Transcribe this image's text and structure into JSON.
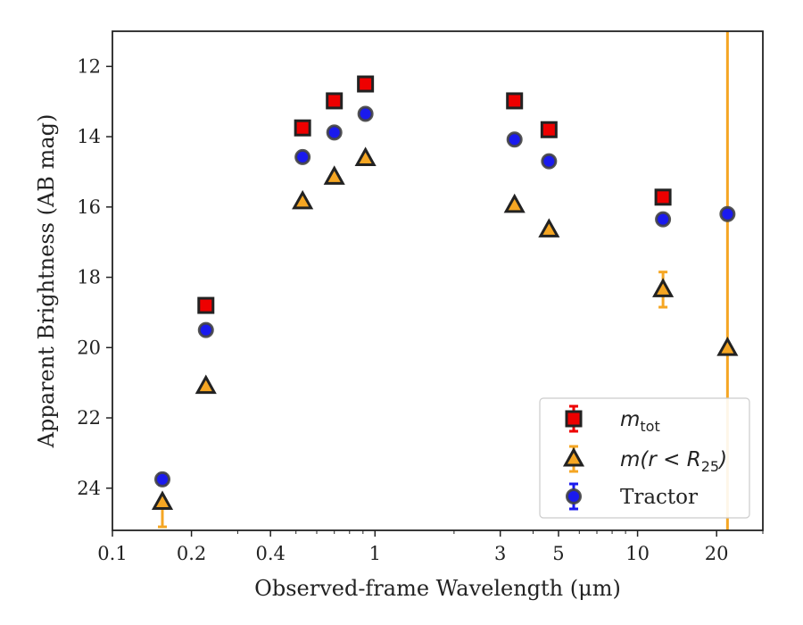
{
  "chart_data": {
    "type": "scatter",
    "xlabel": "Observed-frame Wavelength (μm)",
    "ylabel": "Apparent Brightness (AB mag)",
    "x_scale": "log",
    "xlim": [
      0.1,
      30
    ],
    "ylim": [
      25.2,
      11.0
    ],
    "y_inverted": true,
    "x_ticks": [
      0.1,
      0.2,
      0.4,
      1,
      3,
      5,
      10,
      20
    ],
    "x_tick_labels": [
      "0.1",
      "0.2",
      "0.4",
      "1",
      "3",
      "5",
      "10",
      "20"
    ],
    "y_ticks": [
      12,
      14,
      16,
      18,
      20,
      22,
      24
    ],
    "y_tick_labels": [
      "12",
      "14",
      "16",
      "18",
      "20",
      "22",
      "24"
    ],
    "grid": false,
    "legend_position": "lower right",
    "series": [
      {
        "name": "m_tot",
        "legend_main": "m",
        "legend_sub": "tot",
        "marker": "square",
        "color": "#ee0000",
        "errorbar_color": "#ee0000",
        "edge_color": "#222222",
        "points": [
          {
            "x": 0.227,
            "y": 18.8
          },
          {
            "x": 0.53,
            "y": 13.75
          },
          {
            "x": 0.7,
            "y": 12.98
          },
          {
            "x": 0.92,
            "y": 12.5
          },
          {
            "x": 3.4,
            "y": 12.98
          },
          {
            "x": 4.6,
            "y": 13.8
          },
          {
            "x": 12.5,
            "y": 15.72
          }
        ]
      },
      {
        "name": "m(r < R_25)",
        "legend_main": "m(r < R",
        "legend_sub": "25",
        "legend_close": ")",
        "marker": "triangle",
        "color": "#f5a623",
        "errorbar_color": "#f5a623",
        "edge_color": "#222222",
        "points": [
          {
            "x": 0.155,
            "y": 24.4,
            "err_low": 0.7,
            "err_high": 0.0
          },
          {
            "x": 0.227,
            "y": 21.1
          },
          {
            "x": 0.53,
            "y": 15.85
          },
          {
            "x": 0.7,
            "y": 15.15
          },
          {
            "x": 0.92,
            "y": 14.62
          },
          {
            "x": 3.4,
            "y": 15.95
          },
          {
            "x": 4.6,
            "y": 16.65
          },
          {
            "x": 12.5,
            "y": 18.35,
            "err_low": 0.5,
            "err_high": 0.5
          },
          {
            "x": 22.0,
            "y": 20.02,
            "err_low": 50,
            "err_high": 50
          }
        ]
      },
      {
        "name": "Tractor",
        "marker": "circle",
        "color": "#1a1aee",
        "errorbar_color": "#1a1aee",
        "edge_color": "#444444",
        "points": [
          {
            "x": 0.155,
            "y": 23.75,
            "err_low": 0.15,
            "err_high": 0.15
          },
          {
            "x": 0.227,
            "y": 19.5
          },
          {
            "x": 0.53,
            "y": 14.58
          },
          {
            "x": 0.7,
            "y": 13.88
          },
          {
            "x": 0.92,
            "y": 13.35
          },
          {
            "x": 3.4,
            "y": 14.08
          },
          {
            "x": 4.6,
            "y": 14.7
          },
          {
            "x": 12.5,
            "y": 16.35
          },
          {
            "x": 22.0,
            "y": 16.2
          }
        ]
      }
    ]
  }
}
